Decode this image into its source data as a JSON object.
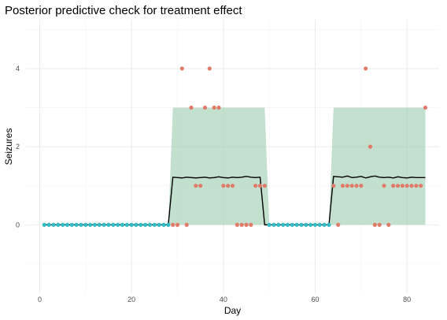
{
  "chart_data": {
    "type": "scatter",
    "title": "Posterior predictive check for treatment effect",
    "xlabel": "Day",
    "ylabel": "Seizures",
    "xlim": [
      -3,
      87
    ],
    "ylim": [
      -1.75,
      5.25
    ],
    "x_ticks": [
      0,
      20,
      40,
      60,
      80
    ],
    "y_ticks": [
      0,
      2,
      4
    ],
    "grid": true,
    "legend": "none",
    "colors": {
      "treatment_points": "#e07b6a",
      "baseline_points": "#35bcc3",
      "interval_fill": "#a3cfb3",
      "mean_line": "#000000"
    },
    "series": [
      {
        "role": "predictive_interval",
        "segments": [
          {
            "x": [
              1,
              28,
              29,
              48,
              49,
              50,
              63
            ],
            "lower": [
              0,
              0,
              0,
              0,
              0,
              0,
              0
            ],
            "upper": [
              0,
              0,
              3,
              3,
              3,
              0,
              0
            ]
          },
          {
            "x": [
              63,
              64,
              84
            ],
            "lower": [
              0,
              0,
              0
            ],
            "upper": [
              0,
              3,
              3
            ]
          }
        ]
      },
      {
        "role": "predictive_mean",
        "x": [
          1,
          2,
          3,
          4,
          5,
          6,
          7,
          8,
          9,
          10,
          11,
          12,
          13,
          14,
          15,
          16,
          17,
          18,
          19,
          20,
          21,
          22,
          23,
          24,
          25,
          26,
          27,
          28,
          29,
          30,
          31,
          32,
          33,
          34,
          35,
          36,
          37,
          38,
          39,
          40,
          41,
          42,
          43,
          44,
          45,
          46,
          47,
          48,
          49,
          50,
          51,
          52,
          53,
          54,
          55,
          56,
          57,
          58,
          59,
          60,
          61,
          62,
          63,
          64,
          65,
          66,
          67,
          68,
          69,
          70,
          71,
          72,
          73,
          74,
          75,
          76,
          77,
          78,
          79,
          80,
          81,
          82,
          83,
          84
        ],
        "y": [
          0,
          0,
          0,
          0,
          0,
          0,
          0,
          0,
          0,
          0,
          0,
          0,
          0,
          0,
          0,
          0,
          0,
          0,
          0,
          0,
          0,
          0,
          0,
          0,
          0,
          0,
          0,
          0,
          1.22,
          1.21,
          1.2,
          1.22,
          1.21,
          1.2,
          1.21,
          1.22,
          1.2,
          1.21,
          1.23,
          1.21,
          1.2,
          1.22,
          1.21,
          1.22,
          1.24,
          1.22,
          1.21,
          1.22,
          0,
          0,
          0,
          0,
          0,
          0,
          0,
          0,
          0,
          0,
          0,
          0,
          0,
          0,
          0,
          1.24,
          1.23,
          1.22,
          1.25,
          1.21,
          1.22,
          1.24,
          1.2,
          1.23,
          1.25,
          1.22,
          1.21,
          1.22,
          1.2,
          1.23,
          1.21,
          1.2,
          1.22,
          1.21,
          1.21,
          1.21
        ]
      },
      {
        "role": "baseline_observed",
        "x": [
          1,
          2,
          3,
          4,
          5,
          6,
          7,
          8,
          9,
          10,
          11,
          12,
          13,
          14,
          15,
          16,
          17,
          18,
          19,
          20,
          21,
          22,
          23,
          24,
          25,
          26,
          27,
          28,
          50,
          51,
          52,
          53,
          54,
          55,
          56,
          57,
          58,
          59,
          60,
          61,
          62,
          63
        ],
        "y": [
          0,
          0,
          0,
          0,
          0,
          0,
          0,
          0,
          0,
          0,
          0,
          0,
          0,
          0,
          0,
          0,
          0,
          0,
          0,
          0,
          0,
          0,
          0,
          0,
          0,
          0,
          0,
          0,
          0,
          0,
          0,
          0,
          0,
          0,
          0,
          0,
          0,
          0,
          0,
          0,
          0,
          0
        ]
      },
      {
        "role": "treatment_observed",
        "x": [
          29,
          30,
          31,
          32,
          33,
          34,
          35,
          36,
          37,
          38,
          39,
          40,
          41,
          42,
          43,
          44,
          45,
          46,
          47,
          48,
          49,
          64,
          65,
          66,
          67,
          68,
          69,
          70,
          71,
          72,
          73,
          74,
          75,
          76,
          77,
          78,
          79,
          80,
          81,
          82,
          83,
          84
        ],
        "y": [
          0,
          0,
          4,
          0,
          3,
          1,
          1,
          3,
          4,
          3,
          3,
          1,
          1,
          1,
          0,
          0,
          0,
          0,
          1,
          1,
          1,
          1,
          0,
          1,
          1,
          1,
          1,
          1,
          4,
          2,
          0,
          0,
          1,
          0,
          1,
          1,
          1,
          1,
          1,
          1,
          1,
          3
        ]
      }
    ]
  }
}
